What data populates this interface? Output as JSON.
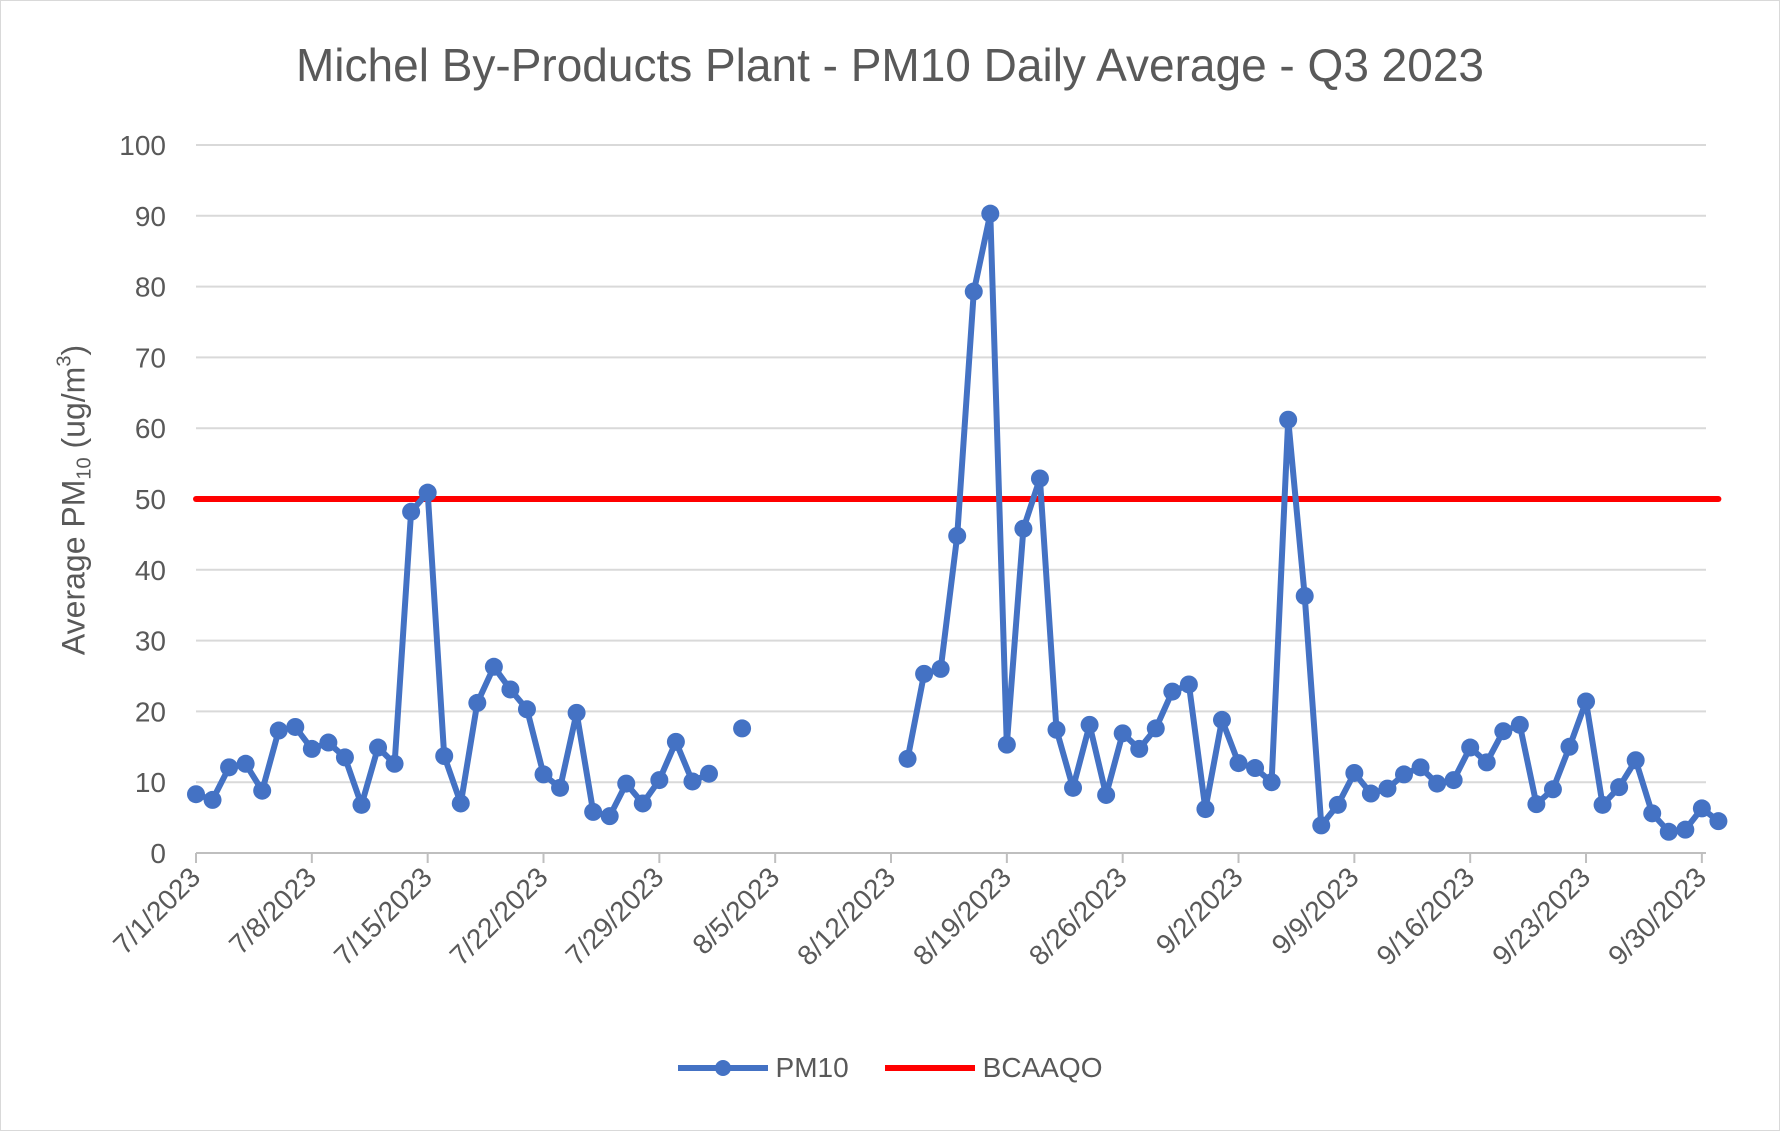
{
  "title": "Michel By-Products Plant - PM10 Daily Average - Q3 2023",
  "chart_data": {
    "type": "line",
    "title": "Michel By-Products Plant - PM10 Daily Average - Q3 2023",
    "xlabel": "",
    "ylabel_parts": [
      "Average PM",
      "10",
      " (ug/m",
      "3",
      ")"
    ],
    "ylim": [
      0,
      100
    ],
    "yticks": [
      0,
      10,
      20,
      30,
      40,
      50,
      60,
      70,
      80,
      90,
      100
    ],
    "xlim": [
      "7/1/2023",
      "9/30/2023"
    ],
    "xticks": [
      "7/1/2023",
      "7/8/2023",
      "7/15/2023",
      "7/22/2023",
      "7/29/2023",
      "8/5/2023",
      "8/12/2023",
      "8/19/2023",
      "8/26/2023",
      "9/2/2023",
      "9/9/2023",
      "9/16/2023",
      "9/23/2023",
      "9/30/2023"
    ],
    "grid": "horizontal",
    "legend": "bottom",
    "series": [
      {
        "name": "PM10",
        "color": "#4472c4",
        "marker": "circle",
        "points": [
          [
            "7/1/2023",
            8.3
          ],
          [
            "7/2/2023",
            7.5
          ],
          [
            "7/3/2023",
            12.1
          ],
          [
            "7/4/2023",
            12.6
          ],
          [
            "7/5/2023",
            8.8
          ],
          [
            "7/6/2023",
            17.3
          ],
          [
            "7/7/2023",
            17.8
          ],
          [
            "7/8/2023",
            14.7
          ],
          [
            "7/9/2023",
            15.6
          ],
          [
            "7/10/2023",
            13.5
          ],
          [
            "7/11/2023",
            6.8
          ],
          [
            "7/12/2023",
            14.9
          ],
          [
            "7/13/2023",
            12.6
          ],
          [
            "7/14/2023",
            48.2
          ],
          [
            "7/15/2023",
            50.9
          ],
          [
            "7/16/2023",
            13.7
          ],
          [
            "7/17/2023",
            7.0
          ],
          [
            "7/18/2023",
            21.2
          ],
          [
            "7/19/2023",
            26.3
          ],
          [
            "7/20/2023",
            23.1
          ],
          [
            "7/21/2023",
            20.3
          ],
          [
            "7/22/2023",
            11.1
          ],
          [
            "7/23/2023",
            9.2
          ],
          [
            "7/24/2023",
            19.8
          ],
          [
            "7/25/2023",
            5.8
          ],
          [
            "7/26/2023",
            5.2
          ],
          [
            "7/27/2023",
            9.8
          ],
          [
            "7/28/2023",
            7.0
          ],
          [
            "7/29/2023",
            10.3
          ],
          [
            "7/30/2023",
            15.7
          ],
          [
            "7/31/2023",
            10.1
          ],
          [
            "8/1/2023",
            11.2
          ],
          [
            "8/3/2023",
            17.6
          ],
          [
            "8/2/2023",
            null
          ],
          [
            "8/13/2023",
            13.3
          ],
          [
            "8/14/2023",
            25.3
          ],
          [
            "8/15/2023",
            26.0
          ],
          [
            "8/16/2023",
            44.8
          ],
          [
            "8/17/2023",
            79.3
          ],
          [
            "8/18/2023",
            90.3
          ],
          [
            "8/19/2023",
            15.3
          ],
          [
            "8/20/2023",
            45.8
          ],
          [
            "8/21/2023",
            52.9
          ],
          [
            "8/22/2023",
            17.4
          ],
          [
            "8/23/2023",
            9.2
          ],
          [
            "8/24/2023",
            18.1
          ],
          [
            "8/25/2023",
            8.2
          ],
          [
            "8/26/2023",
            16.9
          ],
          [
            "8/27/2023",
            14.7
          ],
          [
            "8/28/2023",
            17.6
          ],
          [
            "8/29/2023",
            22.8
          ],
          [
            "8/30/2023",
            23.8
          ],
          [
            "8/31/2023",
            6.2
          ],
          [
            "9/1/2023",
            18.8
          ],
          [
            "9/2/2023",
            12.7
          ],
          [
            "9/3/2023",
            12.0
          ],
          [
            "9/4/2023",
            10.0
          ],
          [
            "9/5/2023",
            61.2
          ],
          [
            "9/6/2023",
            36.3
          ],
          [
            "9/7/2023",
            3.9
          ],
          [
            "9/8/2023",
            6.8
          ],
          [
            "9/9/2023",
            11.3
          ],
          [
            "9/10/2023",
            8.4
          ],
          [
            "9/11/2023",
            9.1
          ],
          [
            "9/12/2023",
            11.1
          ],
          [
            "9/13/2023",
            12.1
          ],
          [
            "9/14/2023",
            9.8
          ],
          [
            "9/15/2023",
            10.3
          ],
          [
            "9/16/2023",
            14.9
          ],
          [
            "9/17/2023",
            12.8
          ],
          [
            "9/18/2023",
            17.2
          ],
          [
            "9/19/2023",
            18.1
          ],
          [
            "9/20/2023",
            6.9
          ],
          [
            "9/21/2023",
            9.0
          ],
          [
            "9/22/2023",
            15.0
          ],
          [
            "9/23/2023",
            21.4
          ],
          [
            "9/24/2023",
            6.8
          ],
          [
            "9/25/2023",
            9.3
          ],
          [
            "9/26/2023",
            13.1
          ],
          [
            "9/27/2023",
            5.6
          ],
          [
            "9/28/2023",
            3.0
          ],
          [
            "9/29/2023",
            3.3
          ],
          [
            "9/30/2023",
            6.3
          ],
          [
            "10/1/2023",
            4.5
          ]
        ]
      },
      {
        "name": "BCAAQO",
        "color": "#ff0000",
        "marker": "none",
        "points": [
          [
            "7/1/2023",
            50
          ],
          [
            "10/1/2023",
            50
          ]
        ]
      }
    ]
  },
  "legend": {
    "items": [
      {
        "label": "PM10",
        "color": "#4472c4"
      },
      {
        "label": "BCAAQO",
        "color": "#ff0000"
      }
    ]
  }
}
